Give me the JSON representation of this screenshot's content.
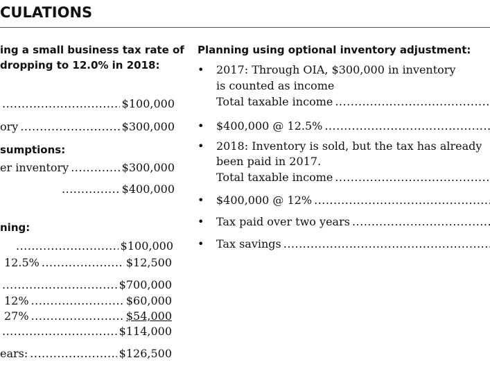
{
  "title": "CULATIONS",
  "left": {
    "heading": [
      "ing a small business tax rate of",
      "dropping to 12.0% in 2018:"
    ],
    "rows1": [
      {
        "label": "",
        "value": "$100,000"
      },
      {
        "label": "ory",
        "value": "$300,000"
      }
    ],
    "heading2": "sumptions:",
    "rows2": [
      {
        "label": "er inventory",
        "value": "$300,000"
      },
      {
        "label": "",
        "value": "$400,000"
      }
    ],
    "heading3": "ning:",
    "rows3": [
      {
        "label": "",
        "value": "$100,000"
      },
      {
        "label": "12.5%",
        "value": "$12,500"
      },
      {
        "label": "",
        "value": "$700,000"
      },
      {
        "label": "12%",
        "value": "$60,000"
      },
      {
        "label": "27%",
        "value": "$54,000"
      },
      {
        "label": "",
        "value": "$114,000"
      },
      {
        "label": "ears:",
        "value": "$126,500"
      }
    ]
  },
  "right": {
    "heading": "Planning using optional inventory adjustment:",
    "bullet_char": "•",
    "b1": {
      "line1": "2017: Through OIA, $300,000 in inventory",
      "line2": "is counted as income",
      "line3": "Total taxable income"
    },
    "b2": "$400,000 @ 12.5%",
    "b3": {
      "line1": "2018: Inventory is sold, but the tax has already",
      "line2": "been paid in 2017.",
      "line3": "Total taxable income"
    },
    "b4": "$400,000 @ 12%",
    "b5": "Tax paid over two years",
    "b6": "Tax savings"
  }
}
